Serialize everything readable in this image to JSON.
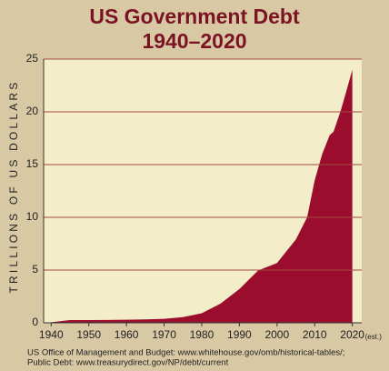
{
  "chart_data": {
    "type": "area",
    "title": "US Government Debt",
    "subtitle": "1940–2020",
    "y_label": "TRILLIONS OF US DOLLARS",
    "annotation": "(est.)",
    "source": [
      "US Office of Management and Budget: www.whitehouse.gov/omb/historical-tables/;",
      "Public Debt: www.treasurydirect.gov/NP/debt/current"
    ],
    "x": [
      1940,
      1945,
      1950,
      1955,
      1960,
      1965,
      1970,
      1975,
      1980,
      1985,
      1990,
      1995,
      2000,
      2005,
      2008,
      2010,
      2012,
      2014,
      2015,
      2017,
      2019,
      2020
    ],
    "values": [
      0.05,
      0.26,
      0.26,
      0.27,
      0.29,
      0.32,
      0.38,
      0.54,
      0.91,
      1.82,
      3.2,
      4.97,
      5.67,
      7.9,
      10.0,
      13.5,
      16.0,
      17.8,
      18.1,
      20.2,
      22.7,
      24
    ],
    "color": "#9b0d2d",
    "xlim": [
      1938,
      2022.5
    ],
    "xticks": [
      1940,
      1950,
      1960,
      1970,
      1980,
      1990,
      2000,
      2010,
      2020
    ],
    "ylim": [
      0,
      25
    ],
    "yticks": [
      0,
      5,
      10,
      15,
      20,
      25
    ],
    "grid": true
  }
}
